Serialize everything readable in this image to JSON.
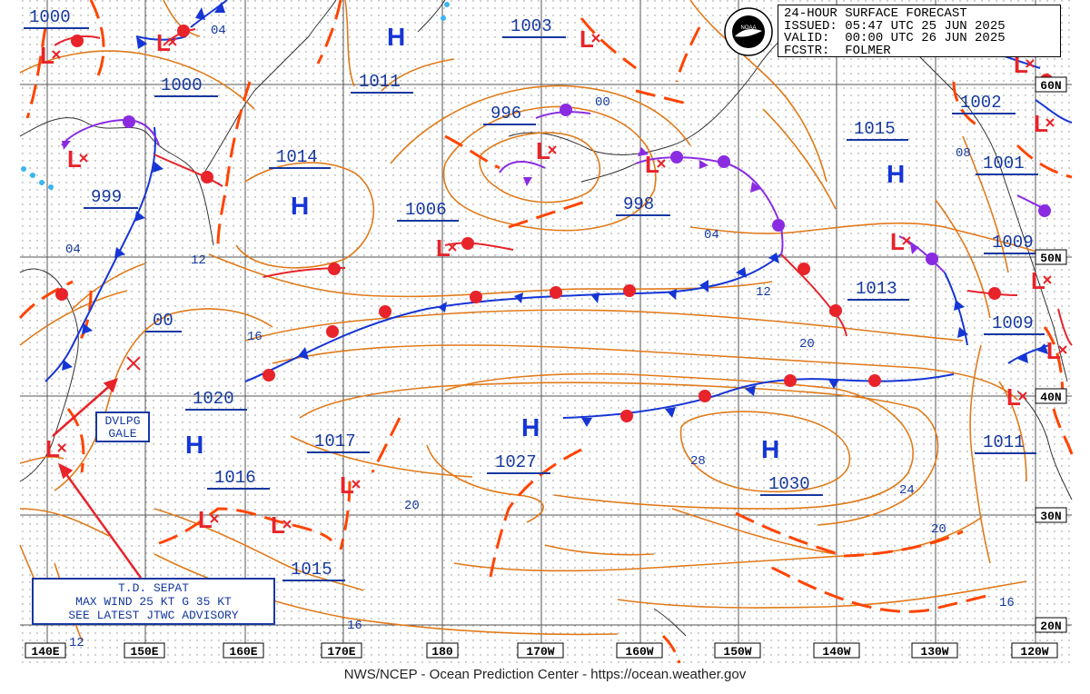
{
  "header": {
    "line1": "24-HOUR SURFACE FORECAST",
    "line2": "ISSUED: 05:47 UTC 25 JUN 2025",
    "line3": "VALID:  00:00 UTC 26 JUN 2025",
    "line4": "FCSTR:  FOLMER",
    "logo_text": "NOAA"
  },
  "caption": "NWS/NCEP - Ocean Prediction Center - https://ocean.weather.gov",
  "longitude_labels": [
    "140E",
    "150E",
    "160E",
    "170E",
    "180",
    "170W",
    "160W",
    "150W",
    "140W",
    "130W",
    "120W"
  ],
  "latitude_labels": [
    "60N",
    "50N",
    "40N",
    "30N",
    "20N"
  ],
  "pressure_centers": [
    {
      "symbol": "L",
      "value": "1000"
    },
    {
      "symbol": "L",
      "value": "1000"
    },
    {
      "symbol": "L",
      "value": "999"
    },
    {
      "symbol": "H",
      "value": "1014"
    },
    {
      "symbol": "H",
      "value": "1011"
    },
    {
      "symbol": "L",
      "value": "1003"
    },
    {
      "symbol": "L",
      "value": "996"
    },
    {
      "symbol": "L",
      "value": "1006"
    },
    {
      "symbol": "L",
      "value": "998"
    },
    {
      "symbol": "H",
      "value": "1015"
    },
    {
      "symbol": "L",
      "value": "1002"
    },
    {
      "symbol": "L",
      "value": "1001"
    },
    {
      "symbol": "L",
      "value": "1009"
    },
    {
      "symbol": "L",
      "value": "1013"
    },
    {
      "symbol": "L",
      "value": "1009"
    },
    {
      "symbol": "L",
      "value": "1011"
    },
    {
      "symbol": "L",
      "value": "00"
    },
    {
      "symbol": "H",
      "value": "1020"
    },
    {
      "symbol": "L",
      "value": "1017"
    },
    {
      "symbol": "L",
      "value": "1016"
    },
    {
      "symbol": "L",
      "value": "1015"
    },
    {
      "symbol": "H",
      "value": "1027"
    },
    {
      "symbol": "H",
      "value": "1030"
    }
  ],
  "isobar_labels": [
    "04",
    "04",
    "00",
    "04",
    "08",
    "12",
    "12",
    "16",
    "20",
    "20",
    "24",
    "28",
    "20",
    "16",
    "16",
    "12"
  ],
  "annotations": {
    "gale": [
      "DVLPG",
      "GALE"
    ],
    "storm": [
      "T.D. SEPAT",
      "MAX WIND 25 KT G 35 KT",
      "SEE LATEST JTWC ADVISORY"
    ]
  },
  "colors": {
    "isobar": "#e07a1a",
    "trough": "#ff4400",
    "low": "#e8232a",
    "high": "#1535d5",
    "cold_front": "#1535d5",
    "warm_front": "#e8232a",
    "occluded_front": "#8a2be2",
    "label_text": "#1538a0",
    "grid": "#555555"
  }
}
